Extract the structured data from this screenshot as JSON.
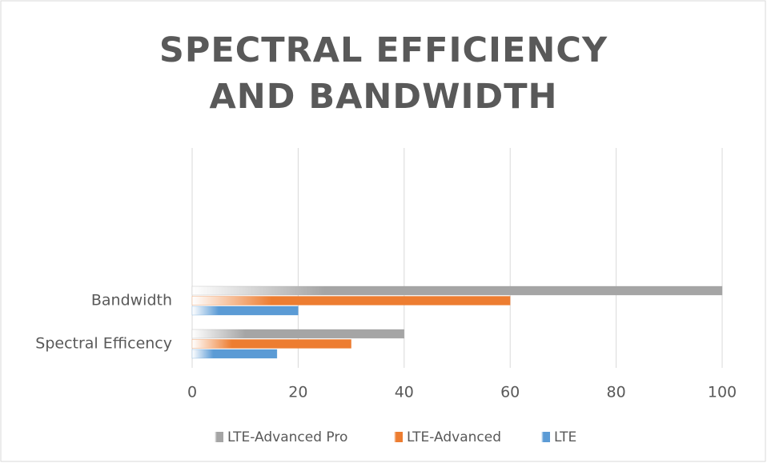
{
  "chart_data": {
    "type": "bar",
    "orientation": "horizontal",
    "title": "SPECTRAL EFFICIENCY AND BANDWIDTH",
    "categories": [
      "Spectral Efficency",
      "Bandwidth"
    ],
    "series": [
      {
        "name": "LTE-Advanced Pro",
        "color": "#a5a5a5",
        "values": [
          40,
          100
        ]
      },
      {
        "name": "LTE-Advanced",
        "color": "#ed7d31",
        "values": [
          30,
          60
        ]
      },
      {
        "name": "LTE",
        "color": "#5b9bd5",
        "values": [
          16,
          20
        ]
      }
    ],
    "xlim": [
      0,
      100
    ],
    "xticks": [
      0,
      20,
      40,
      60,
      80,
      100
    ],
    "grid": true,
    "legend": "bottom"
  }
}
